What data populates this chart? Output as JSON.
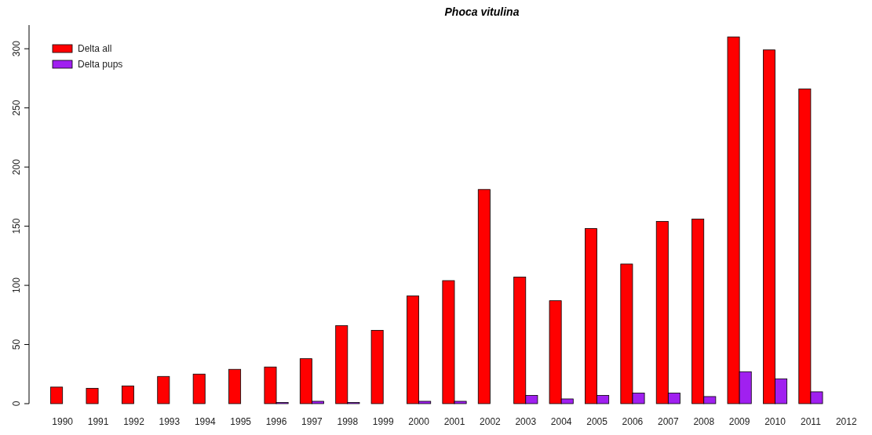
{
  "chart_data": {
    "type": "bar",
    "title": "Phoca vitulina",
    "categories": [
      "1990",
      "1991",
      "1992",
      "1993",
      "1994",
      "1995",
      "1996",
      "1997",
      "1998",
      "1999",
      "2000",
      "2001",
      "2002",
      "2003",
      "2004",
      "2005",
      "2006",
      "2007",
      "2008",
      "2009",
      "2010",
      "2011",
      "2012"
    ],
    "series": [
      {
        "name": "Delta all",
        "color": "#ff0000",
        "values": [
          14,
          13,
          15,
          23,
          25,
          29,
          31,
          38,
          66,
          62,
          91,
          104,
          181,
          107,
          87,
          148,
          118,
          154,
          156,
          310,
          299,
          266,
          null
        ]
      },
      {
        "name": "Delta pups",
        "color": "#a020f0",
        "values": [
          null,
          null,
          null,
          null,
          null,
          null,
          1,
          2,
          1,
          0,
          2,
          2,
          0,
          7,
          4,
          7,
          9,
          9,
          6,
          27,
          21,
          10,
          null
        ]
      }
    ],
    "ylim": [
      0,
      320
    ],
    "yticks": [
      0,
      50,
      100,
      150,
      200,
      250,
      300
    ],
    "grid": false,
    "legend": "top left",
    "tick_labels": "xy"
  }
}
